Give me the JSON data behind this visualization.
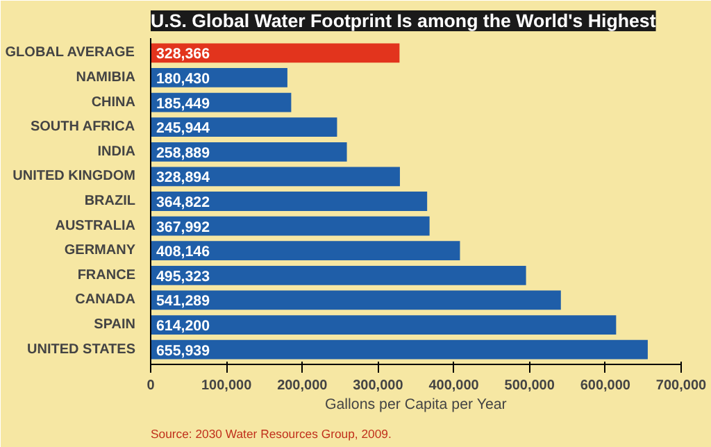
{
  "chart_data": {
    "type": "bar",
    "orientation": "horizontal",
    "title": "U.S. Global Water Footprint Is among the World's Highest",
    "categories": [
      "GLOBAL AVERAGE",
      "NAMIBIA",
      "CHINA",
      "SOUTH AFRICA",
      "INDIA",
      "UNITED KINGDOM",
      "BRAZIL",
      "AUSTRALIA",
      "GERMANY",
      "FRANCE",
      "CANADA",
      "SPAIN",
      "UNITED STATES"
    ],
    "values": [
      328366,
      180430,
      185449,
      245944,
      258889,
      328894,
      364822,
      367992,
      408146,
      495323,
      541289,
      614200,
      655939
    ],
    "value_labels": [
      "328,366",
      "180,430",
      "185,449",
      "245,944",
      "258,889",
      "328,894",
      "364,822",
      "367,992",
      "408,146",
      "495,323",
      "541,289",
      "614,200",
      "655,939"
    ],
    "colors": [
      "#e2341d",
      "#1f5ea8",
      "#1f5ea8",
      "#1f5ea8",
      "#1f5ea8",
      "#1f5ea8",
      "#1f5ea8",
      "#1f5ea8",
      "#1f5ea8",
      "#1f5ea8",
      "#1f5ea8",
      "#1f5ea8",
      "#1f5ea8"
    ],
    "xlabel": "Gallons per Capita per Year",
    "xlim": [
      0,
      700000
    ],
    "xticks": [
      {
        "value": 0,
        "label": "0"
      },
      {
        "value": 100000,
        "label": "100,000"
      },
      {
        "value": 200000,
        "label": "200,000"
      },
      {
        "value": 300000,
        "label": "300,000"
      },
      {
        "value": 400000,
        "label": "400,000"
      },
      {
        "value": 500000,
        "label": "500,000"
      },
      {
        "value": 600000,
        "label": "600,000"
      },
      {
        "value": 700000,
        "label": "700,000"
      }
    ],
    "annotations": [
      "Source: 2030 Water Resources Group, 2009."
    ],
    "grid": false
  }
}
